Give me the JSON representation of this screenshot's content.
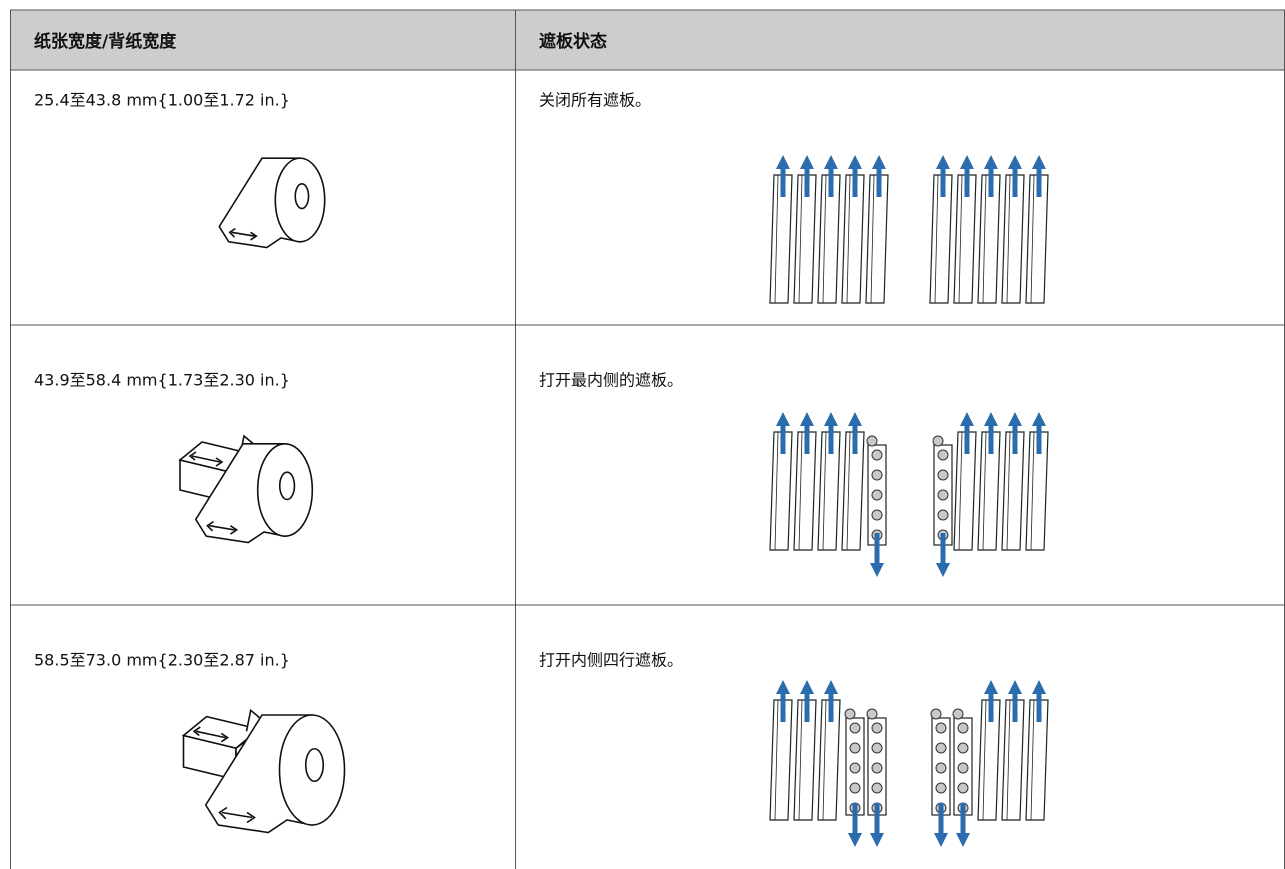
{
  "table": {
    "header": [
      "纸张宽度/背纸宽度",
      "遮板状态"
    ],
    "rows": [
      [
        "25.4至43.8 mm{1.00至1.72 in.}",
        "关闭所有遮板。"
      ],
      [
        "43.9至58.4 mm{1.73至2.30 in.}",
        "打开最内侧的遮板。"
      ],
      [
        "58.5至73.0 mm{2.30至2.87 in.}",
        "打开内侧四行遮板。"
      ]
    ]
  }
}
